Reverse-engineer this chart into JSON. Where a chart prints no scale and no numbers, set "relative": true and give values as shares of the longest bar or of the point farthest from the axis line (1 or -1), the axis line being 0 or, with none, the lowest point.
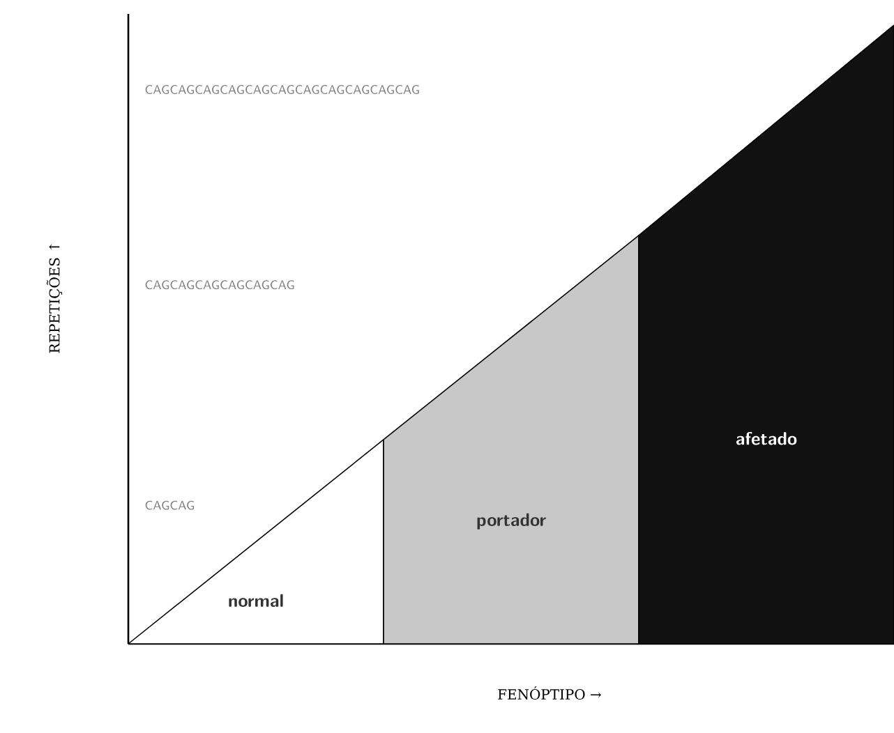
{
  "chart_data": {
    "type": "area",
    "relative": true,
    "xlabel": "FENÓPTIPO →",
    "ylabel": "REPETIÇÕES ↑",
    "categories": [
      null,
      null,
      null,
      null
    ],
    "series": [
      {
        "name": "normal",
        "color": "#ffffff",
        "values": [
          0,
          0.33,
          null,
          null
        ]
      },
      {
        "name": "portador",
        "color": "#c8c8c8",
        "values": [
          null,
          0.33,
          0.66,
          null
        ]
      },
      {
        "name": "afetado",
        "color": "#111111",
        "values": [
          null,
          null,
          0.66,
          1
        ]
      }
    ],
    "annotations": [
      "CAGCAGCAGCAGCAGCAGCAGCAGCAGCAGCAG",
      "CAGCAGCAGCAGCAGCAG",
      "CAGCAG"
    ]
  }
}
